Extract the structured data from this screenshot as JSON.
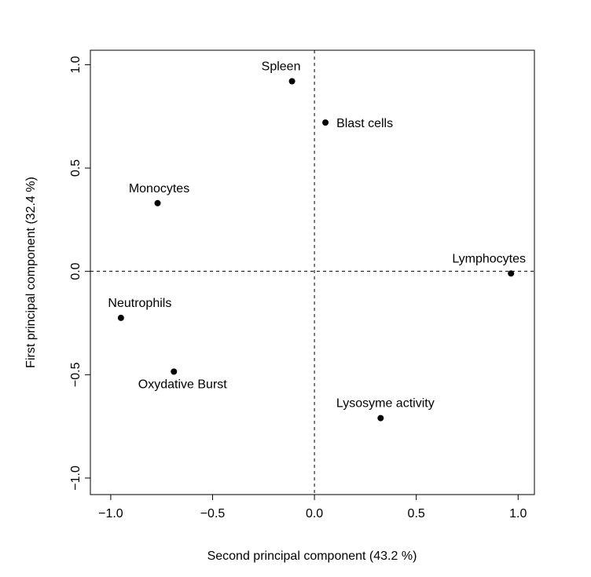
{
  "chart_data": {
    "type": "scatter",
    "xlabel": "Second principal component (43.2 %)",
    "ylabel": "First principal component (32.4 %)",
    "xlim": [
      -1.1,
      1.08
    ],
    "ylim": [
      -1.08,
      1.07
    ],
    "xticks": [
      -1.0,
      -0.5,
      0.0,
      0.5,
      1.0
    ],
    "xtick_labels": [
      "−1.0",
      "−0.5",
      "0.0",
      "0.5",
      "1.0"
    ],
    "yticks": [
      -1.0,
      -0.5,
      0.0,
      0.5,
      1.0
    ],
    "ytick_labels": [
      "−1.0",
      "−0.5",
      "0.0",
      "0.5",
      "1.0"
    ],
    "reference_lines": {
      "x": 0,
      "y": 0,
      "style": "dashed"
    },
    "grid": false,
    "points": [
      {
        "label": "Spleen",
        "x": -0.11,
        "y": 0.92,
        "label_pos": "above"
      },
      {
        "label": "Blast cells",
        "x": 0.054,
        "y": 0.72,
        "label_pos": "right"
      },
      {
        "label": "Monocytes",
        "x": -0.77,
        "y": 0.33,
        "label_pos": "above"
      },
      {
        "label": "Lymphocytes",
        "x": 0.965,
        "y": -0.01,
        "label_pos": "above"
      },
      {
        "label": "Neutrophils",
        "x": -0.95,
        "y": -0.225,
        "label_pos": "above"
      },
      {
        "label": "Oxydative Burst",
        "x": -0.69,
        "y": -0.485,
        "label_pos": "below"
      },
      {
        "label": "Lysosyme activity",
        "x": 0.325,
        "y": -0.71,
        "label_pos": "above"
      }
    ]
  }
}
